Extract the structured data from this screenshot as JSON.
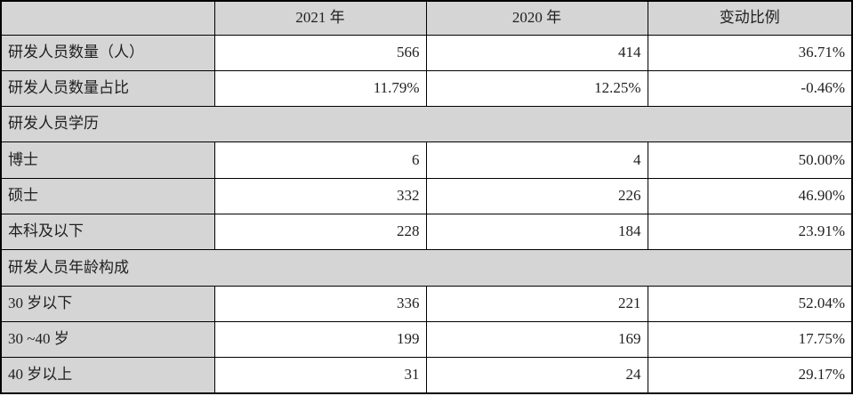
{
  "table": {
    "description": "R&D personnel statistics table",
    "colors": {
      "header_bg": "#d5d5d5",
      "label_bg": "#d5d5d5",
      "section_bg": "#d5d5d5",
      "data_bg": "#ffffff",
      "border": "#000000",
      "text": "#1f1f1f"
    },
    "header": [
      "",
      "2021 年",
      "2020 年",
      "变动比例"
    ],
    "rows": [
      {
        "type": "data",
        "label": "研发人员数量（人）",
        "v2021": "566",
        "v2020": "414",
        "change": "36.71%"
      },
      {
        "type": "data",
        "label": "研发人员数量占比",
        "v2021": "11.79%",
        "v2020": "12.25%",
        "change": "-0.46%"
      },
      {
        "type": "section",
        "label": "研发人员学历"
      },
      {
        "type": "data",
        "label": "博士",
        "v2021": "6",
        "v2020": "4",
        "change": "50.00%"
      },
      {
        "type": "data",
        "label": "硕士",
        "v2021": "332",
        "v2020": "226",
        "change": "46.90%"
      },
      {
        "type": "data",
        "label": "本科及以下",
        "v2021": "228",
        "v2020": "184",
        "change": "23.91%"
      },
      {
        "type": "section",
        "label": "研发人员年龄构成"
      },
      {
        "type": "data",
        "label": "30 岁以下",
        "v2021": "336",
        "v2020": "221",
        "change": "52.04%"
      },
      {
        "type": "data",
        "label": "30 ~40 岁",
        "v2021": "199",
        "v2020": "169",
        "change": "17.75%"
      },
      {
        "type": "data",
        "label": "40 岁以上",
        "v2021": "31",
        "v2020": "24",
        "change": "29.17%"
      }
    ]
  }
}
